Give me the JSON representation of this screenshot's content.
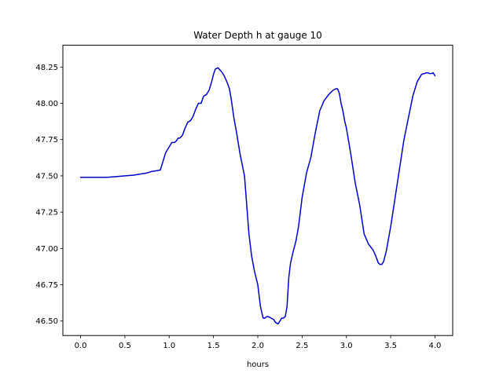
{
  "chart_data": {
    "type": "line",
    "title": "Water Depth h at gauge 10",
    "xlabel": "hours",
    "ylabel": "",
    "xlim": [
      -0.2,
      4.2
    ],
    "ylim": [
      46.4,
      48.4
    ],
    "grid": false,
    "xticks": [
      0.0,
      0.5,
      1.0,
      1.5,
      2.0,
      2.5,
      3.0,
      3.5,
      4.0
    ],
    "xtick_labels": [
      "0.0",
      "0.5",
      "1.0",
      "1.5",
      "2.0",
      "2.5",
      "3.0",
      "3.5",
      "4.0"
    ],
    "yticks": [
      46.5,
      46.75,
      47.0,
      47.25,
      47.5,
      47.75,
      48.0,
      48.25
    ],
    "ytick_labels": [
      "46.50",
      "46.75",
      "47.00",
      "47.25",
      "47.50",
      "47.75",
      "48.00",
      "48.25"
    ],
    "series": [
      {
        "color": "#0000cc",
        "x": [
          0.0,
          0.1,
          0.2,
          0.3,
          0.4,
          0.5,
          0.6,
          0.7,
          0.75,
          0.8,
          0.85,
          0.9,
          0.93,
          0.96,
          1.0,
          1.03,
          1.06,
          1.08,
          1.1,
          1.12,
          1.15,
          1.18,
          1.21,
          1.24,
          1.27,
          1.3,
          1.33,
          1.36,
          1.39,
          1.42,
          1.45,
          1.48,
          1.5,
          1.52,
          1.55,
          1.58,
          1.6,
          1.62,
          1.65,
          1.68,
          1.7,
          1.73,
          1.76,
          1.8,
          1.85,
          1.9,
          1.93,
          1.96,
          2.0,
          2.03,
          2.06,
          2.08,
          2.1,
          2.12,
          2.15,
          2.18,
          2.2,
          2.23,
          2.25,
          2.27,
          2.29,
          2.31,
          2.33,
          2.35,
          2.37,
          2.4,
          2.43,
          2.46,
          2.5,
          2.55,
          2.6,
          2.65,
          2.7,
          2.75,
          2.8,
          2.85,
          2.88,
          2.9,
          2.92,
          2.94,
          2.96,
          2.98,
          3.0,
          3.05,
          3.1,
          3.15,
          3.2,
          3.25,
          3.3,
          3.33,
          3.36,
          3.38,
          3.4,
          3.42,
          3.45,
          3.5,
          3.55,
          3.6,
          3.65,
          3.7,
          3.75,
          3.8,
          3.85,
          3.88,
          3.9,
          3.92,
          3.94,
          3.96,
          3.98,
          4.0
        ],
        "y": [
          47.49,
          47.49,
          47.49,
          47.49,
          47.495,
          47.5,
          47.505,
          47.515,
          47.52,
          47.53,
          47.535,
          47.54,
          47.6,
          47.66,
          47.7,
          47.73,
          47.73,
          47.74,
          47.76,
          47.76,
          47.78,
          47.83,
          47.87,
          47.88,
          47.91,
          47.96,
          48.0,
          48.0,
          48.05,
          48.06,
          48.09,
          48.15,
          48.2,
          48.235,
          48.245,
          48.225,
          48.21,
          48.19,
          48.15,
          48.1,
          48.03,
          47.9,
          47.8,
          47.65,
          47.5,
          47.1,
          46.95,
          46.85,
          46.75,
          46.6,
          46.52,
          46.52,
          46.53,
          46.53,
          46.52,
          46.51,
          46.49,
          46.48,
          46.5,
          46.52,
          46.52,
          46.53,
          46.6,
          46.8,
          46.9,
          46.98,
          47.05,
          47.15,
          47.35,
          47.52,
          47.63,
          47.8,
          47.95,
          48.02,
          48.06,
          48.09,
          48.1,
          48.1,
          48.07,
          48.0,
          47.95,
          47.88,
          47.83,
          47.65,
          47.45,
          47.3,
          47.1,
          47.03,
          46.99,
          46.95,
          46.9,
          46.89,
          46.89,
          46.91,
          46.98,
          47.15,
          47.35,
          47.55,
          47.75,
          47.9,
          48.05,
          48.15,
          48.2,
          48.205,
          48.21,
          48.21,
          48.205,
          48.205,
          48.21,
          48.19
        ]
      }
    ]
  }
}
